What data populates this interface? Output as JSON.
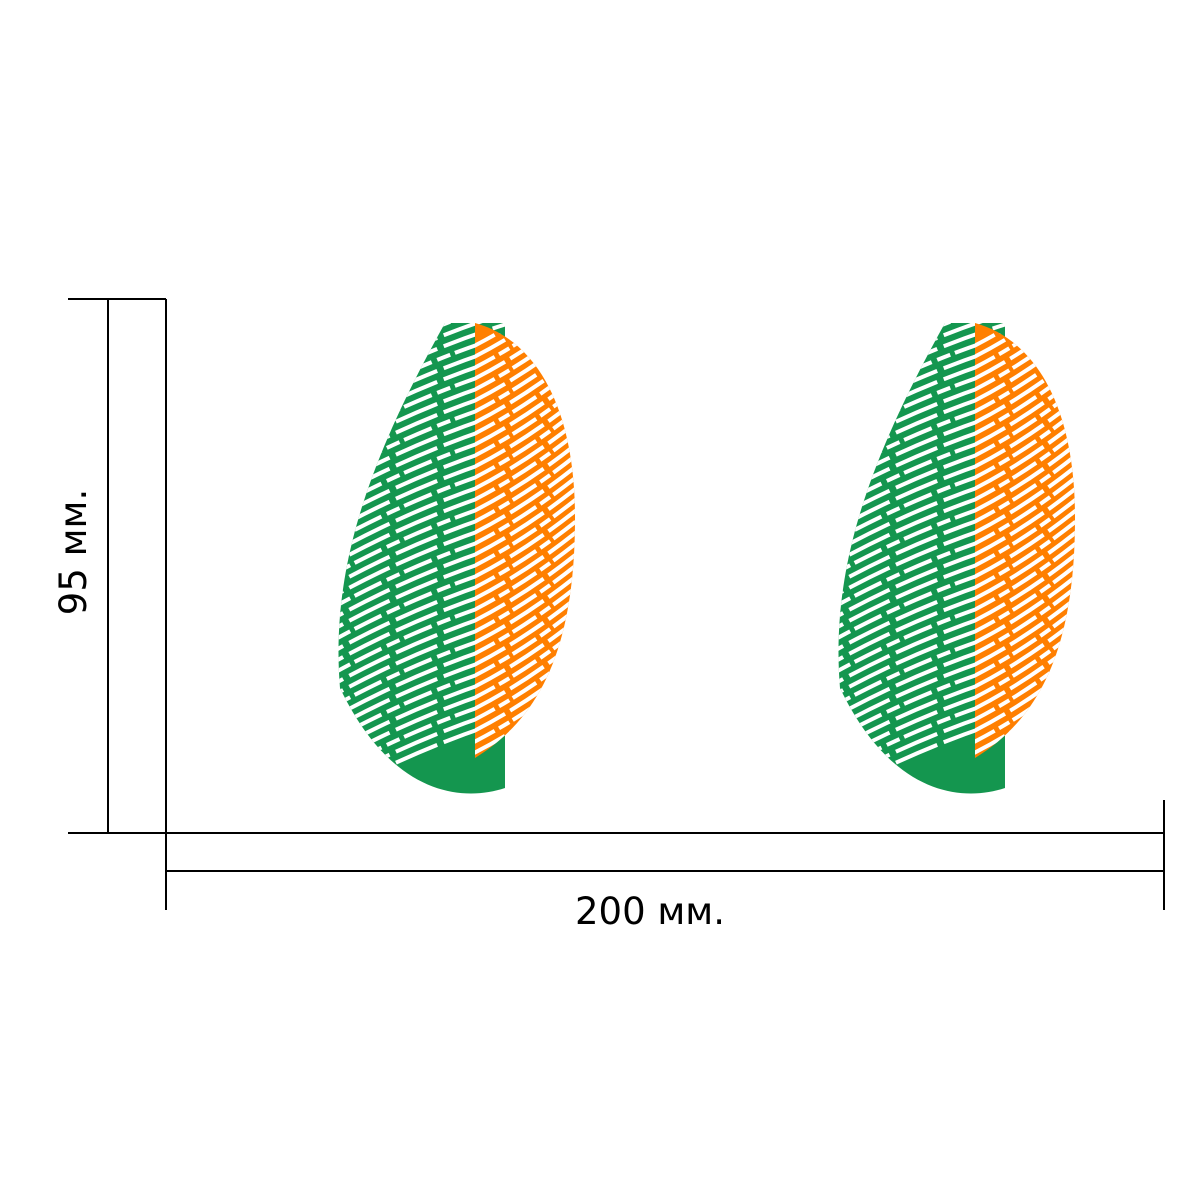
{
  "dimensions": {
    "width_label": "200 мм.",
    "height_label": "95 мм."
  },
  "design": {
    "motif": "fingerprint",
    "count": 2,
    "colors": {
      "left": "#14964f",
      "middle": "#ffffff",
      "right": "#ff7f00",
      "lines": "#000000"
    }
  }
}
